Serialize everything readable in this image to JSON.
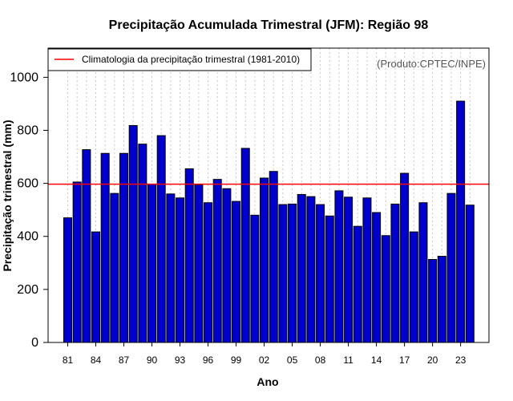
{
  "chart_data": {
    "type": "bar",
    "title": "Precipitação Acumulada Trimestral (JFM): Região 98",
    "xlabel": "Ano",
    "ylabel": "Precipitação trimestral (mm)",
    "ylim": [
      0,
      1110
    ],
    "yticks": [
      0,
      200,
      400,
      600,
      800,
      1000
    ],
    "source_note": "(Produto:CPTEC/INPE)",
    "x_tick_labels": [
      "81",
      "84",
      "87",
      "90",
      "93",
      "96",
      "99",
      "02",
      "05",
      "08",
      "11",
      "14",
      "17",
      "20",
      "23"
    ],
    "years": [
      1981,
      1982,
      1983,
      1984,
      1985,
      1986,
      1987,
      1988,
      1989,
      1990,
      1991,
      1992,
      1993,
      1994,
      1995,
      1996,
      1997,
      1998,
      1999,
      2000,
      2001,
      2002,
      2003,
      2004,
      2005,
      2006,
      2007,
      2008,
      2009,
      2010,
      2011,
      2012,
      2013,
      2014,
      2015,
      2016,
      2017,
      2018,
      2019,
      2020,
      2021,
      2022,
      2023,
      2024
    ],
    "values": [
      470,
      605,
      727,
      417,
      713,
      562,
      713,
      818,
      748,
      597,
      780,
      560,
      545,
      655,
      595,
      527,
      615,
      580,
      532,
      732,
      480,
      620,
      645,
      520,
      522,
      558,
      550,
      520,
      477,
      572,
      548,
      438,
      545,
      490,
      403,
      522,
      638,
      417,
      527,
      313,
      325,
      562,
      910,
      518
    ],
    "bar_color": "#0000cd",
    "reference_line": {
      "label": "Climatologia da precipitação trimestral (1981-2010)",
      "value": 597,
      "color": "#ff0000"
    },
    "grid": "vertical dotted per year"
  }
}
